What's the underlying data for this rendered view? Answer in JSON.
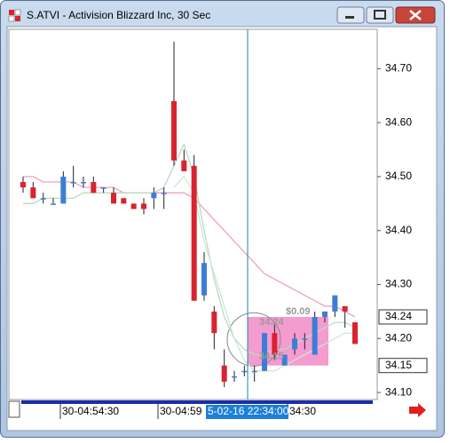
{
  "window": {
    "title": "S.ATVI - Activision Blizzard Inc, 30 Sec"
  },
  "chart_data": {
    "type": "candlestick",
    "open": [
      34.49,
      34.48,
      34.46,
      34.45,
      34.45,
      34.49,
      34.49,
      34.49,
      34.48,
      34.47,
      34.46,
      34.45,
      34.45,
      34.46,
      34.47,
      34.64,
      34.53,
      34.52,
      34.28,
      34.25,
      34.15,
      34.13,
      34.14,
      34.14,
      34.14,
      34.21,
      34.15,
      34.18,
      34.2,
      34.17,
      34.24,
      34.25,
      34.26,
      34.23
    ],
    "high": [
      34.5,
      34.49,
      34.47,
      34.46,
      34.51,
      34.52,
      34.5,
      34.5,
      34.48,
      34.48,
      34.46,
      34.45,
      34.46,
      34.48,
      34.48,
      34.75,
      34.55,
      34.54,
      34.36,
      34.26,
      34.18,
      34.14,
      34.15,
      34.15,
      34.21,
      34.23,
      34.17,
      34.21,
      34.21,
      34.25,
      34.25,
      34.28,
      34.26,
      34.23
    ],
    "low": [
      34.47,
      34.46,
      34.45,
      34.45,
      34.45,
      34.48,
      34.48,
      34.47,
      34.47,
      34.45,
      34.45,
      34.44,
      34.43,
      34.44,
      34.44,
      34.52,
      34.51,
      34.27,
      34.27,
      34.18,
      34.11,
      34.12,
      34.13,
      34.12,
      34.14,
      34.16,
      34.15,
      34.17,
      34.18,
      34.17,
      34.23,
      34.24,
      34.22,
      34.19
    ],
    "close": [
      34.48,
      34.46,
      34.46,
      34.45,
      34.5,
      34.49,
      34.49,
      34.47,
      34.48,
      34.45,
      34.45,
      34.44,
      34.44,
      34.47,
      34.47,
      34.53,
      34.51,
      34.27,
      34.34,
      34.21,
      34.12,
      34.13,
      34.14,
      34.14,
      34.21,
      34.17,
      34.17,
      34.2,
      34.2,
      34.24,
      34.25,
      34.28,
      34.25,
      34.19
    ],
    "up_color": "#3a7fd5",
    "down_color": "#d9232e",
    "series": [
      {
        "color": "#f0a0c0",
        "values": [
          34.5,
          34.5,
          34.49,
          34.49,
          34.49,
          34.49,
          34.48,
          34.48,
          34.48,
          34.48,
          34.47,
          34.47,
          34.47,
          34.47,
          34.47,
          34.47,
          34.47,
          34.46,
          34.44,
          34.42,
          34.4,
          34.38,
          34.36,
          34.34,
          34.32,
          34.31,
          34.3,
          34.29,
          34.28,
          34.27,
          34.26,
          34.26,
          34.25,
          34.24
        ]
      },
      {
        "color": "#b8dcc0",
        "values": [
          34.45,
          34.45,
          34.46,
          34.46,
          34.46,
          34.46,
          34.47,
          34.47,
          34.47,
          34.47,
          34.47,
          34.47,
          34.47,
          34.47,
          34.48,
          34.52,
          34.56,
          34.5,
          34.4,
          34.31,
          34.24,
          34.2,
          34.18,
          34.17,
          34.17,
          34.18,
          34.18,
          34.19,
          34.2,
          34.21,
          34.22,
          34.23,
          34.23,
          34.22
        ]
      },
      {
        "color": "#cfe6d4",
        "values": [
          null,
          null,
          null,
          null,
          null,
          null,
          null,
          null,
          null,
          null,
          null,
          null,
          null,
          null,
          null,
          34.48,
          34.5,
          34.47,
          34.38,
          34.32,
          34.26,
          34.2,
          34.16,
          34.14,
          34.14,
          34.14,
          34.15,
          34.16,
          34.17,
          34.18,
          34.19,
          34.2,
          34.21,
          34.21
        ]
      }
    ],
    "ylim": [
      34.087,
      34.773
    ],
    "yticks": [
      {
        "value": 34.1,
        "label": "34.10"
      },
      {
        "value": 34.2,
        "label": "34.20"
      },
      {
        "value": 34.3,
        "label": "34.30"
      },
      {
        "value": 34.4,
        "label": "34.40"
      },
      {
        "value": 34.5,
        "label": "34.50"
      },
      {
        "value": 34.6,
        "label": "34.60"
      },
      {
        "value": 34.7,
        "label": "34.70"
      }
    ],
    "price_tags": [
      {
        "value": 34.24,
        "label": "34.24"
      },
      {
        "value": 34.15,
        "label": "34.15"
      }
    ],
    "annotation": {
      "top": {
        "value": 34.24,
        "label": "34.24"
      },
      "bottom": {
        "value": 34.15,
        "label": "34.15"
      },
      "delta": "$0.09"
    },
    "x_labels": [
      "30-04:54:30",
      "30-04:59",
      "34:30"
    ],
    "cursor_label": "5-02-16 22:34:00"
  }
}
